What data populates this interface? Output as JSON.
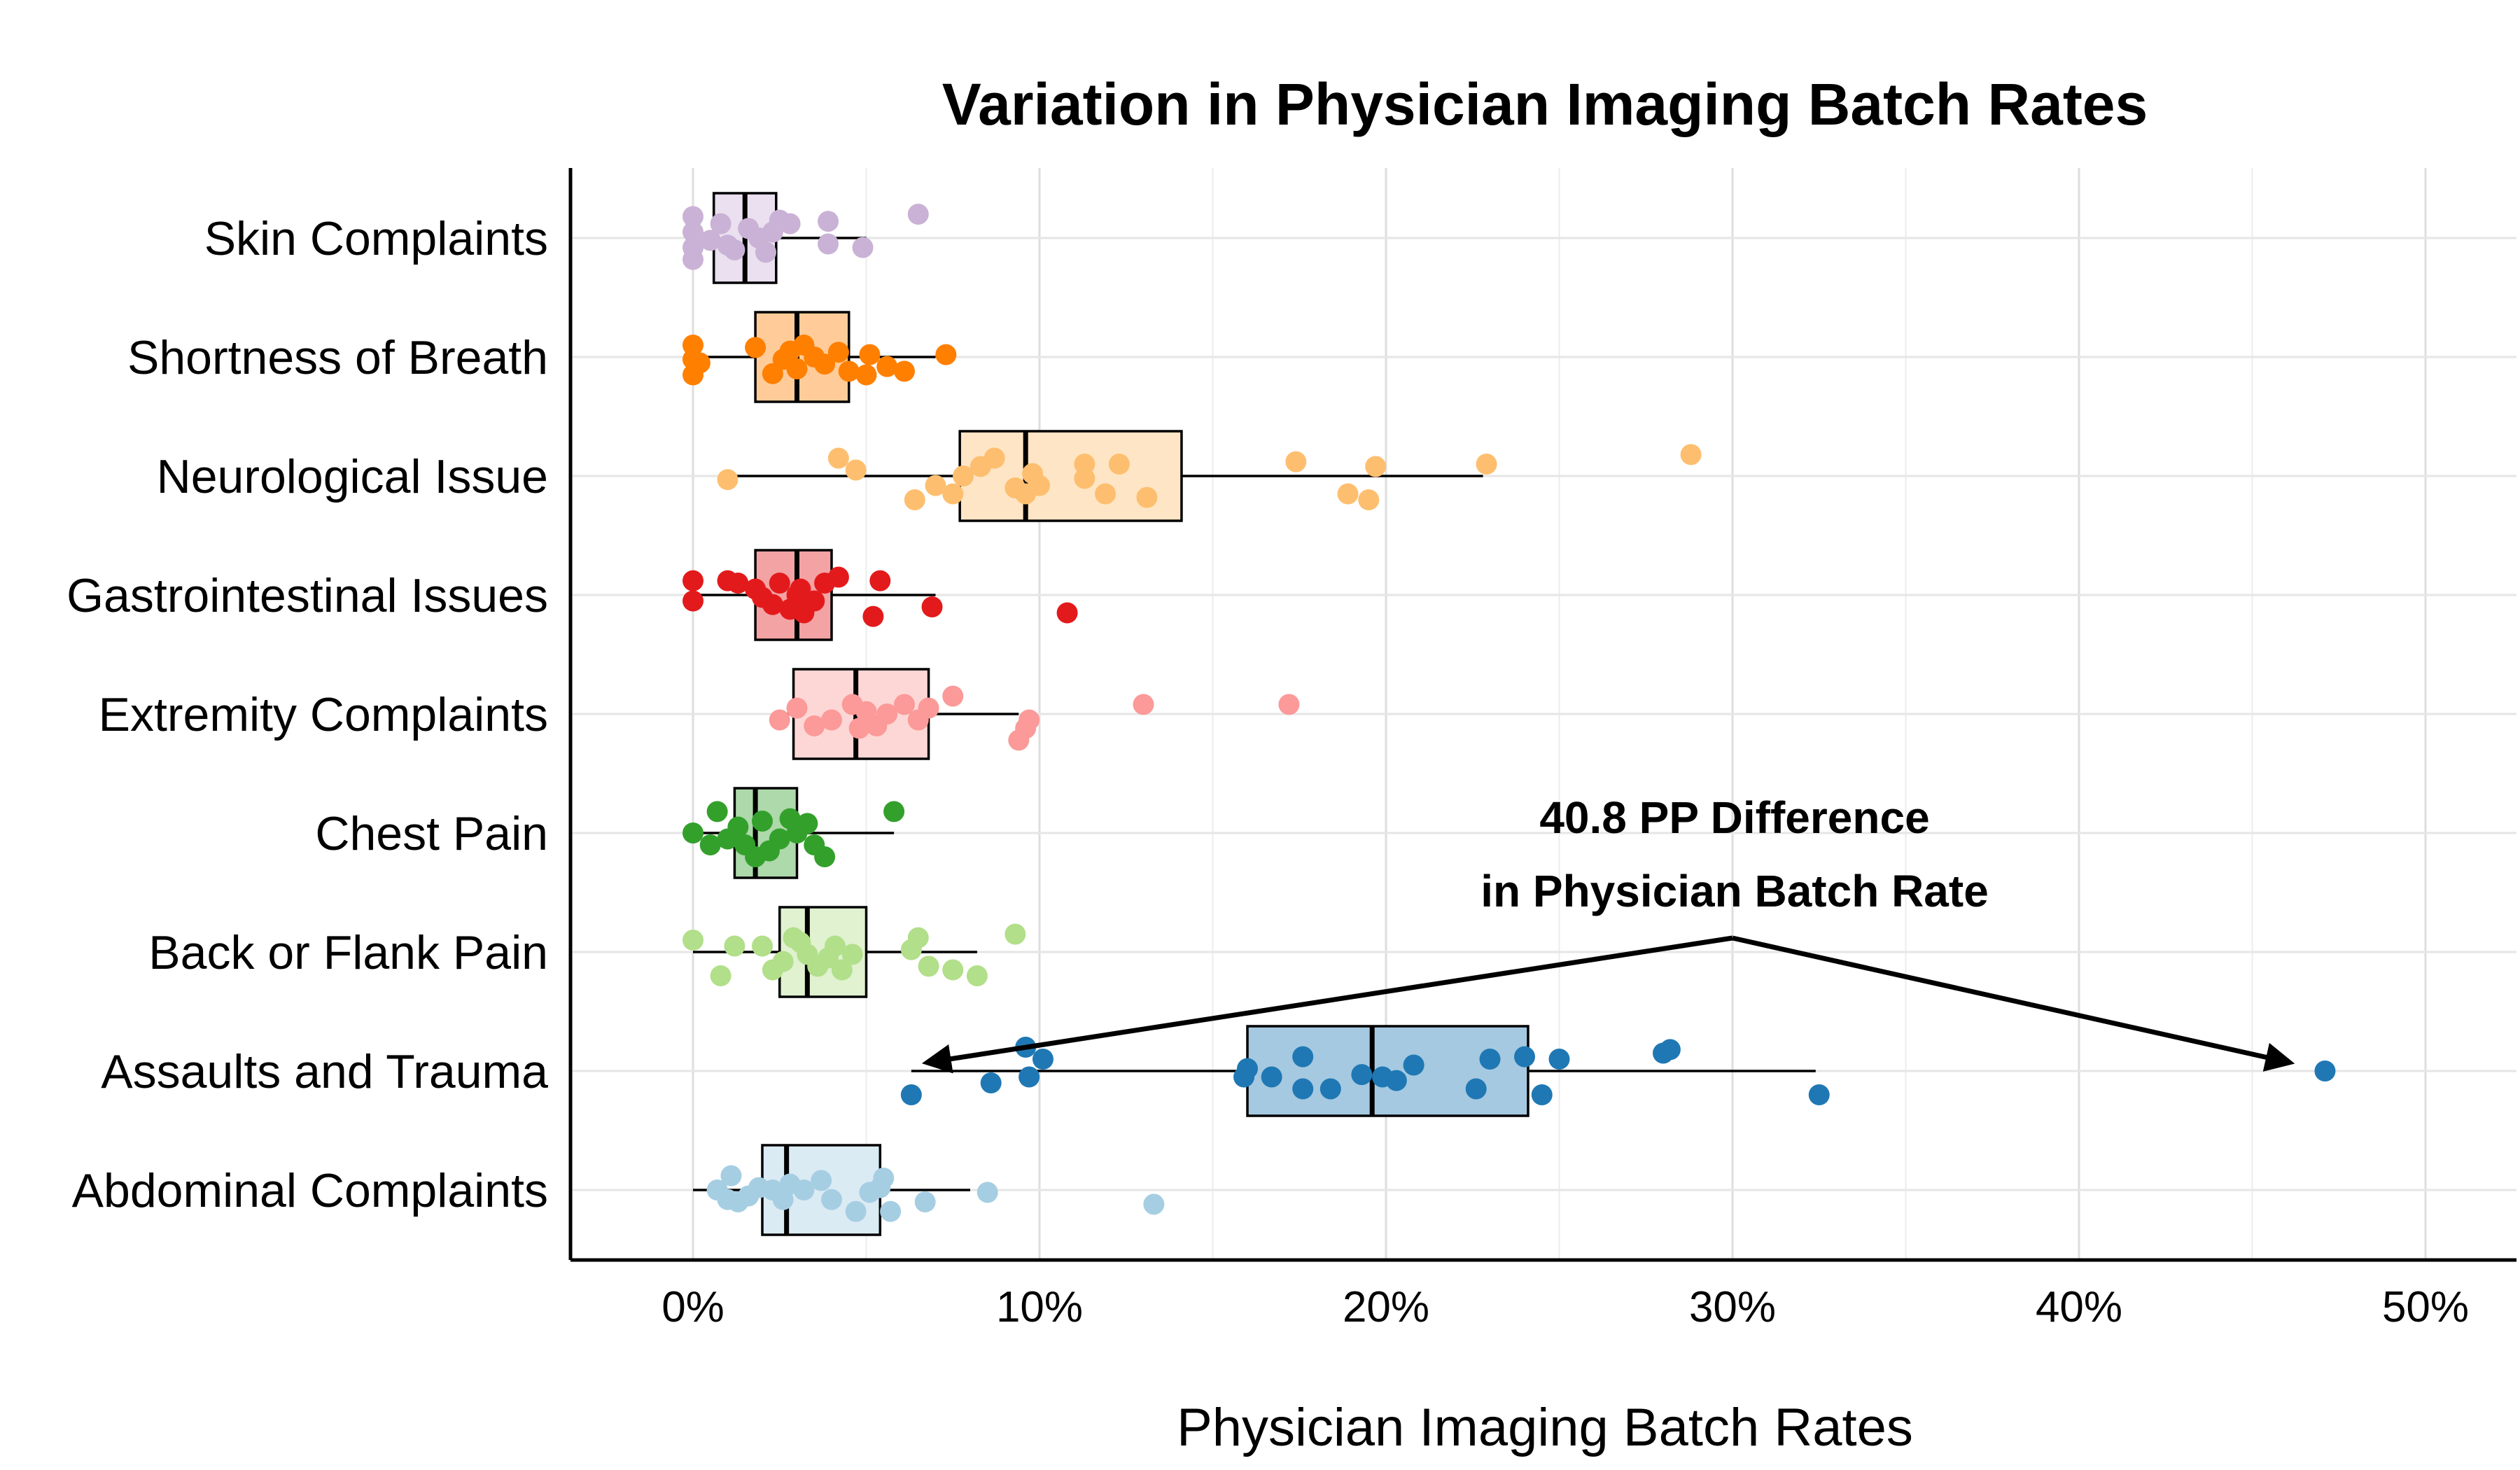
{
  "chart_data": {
    "type": "box",
    "title": "Variation in Physician Imaging Batch Rates",
    "xlabel": "Physician Imaging Batch Rates",
    "ylabel": "",
    "xlim": [
      -3.5,
      52.5
    ],
    "x_ticks": [
      0,
      10,
      20,
      30,
      40,
      50
    ],
    "x_tick_labels": [
      "0%",
      "10%",
      "20%",
      "30%",
      "40%",
      "50%"
    ],
    "grid": true,
    "annotation": {
      "lines": [
        "40.8 PP Difference",
        "in Physician Batch Rate"
      ],
      "from_x": 30,
      "arrow_targets_x": [
        6.3,
        47.1
      ],
      "arrow_target_category": "Assaults and Trauma"
    },
    "categories": [
      "Skin Complaints",
      "Shortness of Breath",
      "Neurological Issue",
      "Gastrointestinal Issues",
      "Extremity Complaints",
      "Chest Pain",
      "Back or Flank Pain",
      "Assaults and Trauma",
      "Abdominal Complaints"
    ],
    "series": [
      {
        "category": "Skin Complaints",
        "color": "#cab2d6",
        "box": {
          "whisker_low": 0,
          "q1": 0.6,
          "median": 1.5,
          "q3": 2.4,
          "whisker_high": 5.0
        },
        "points": [
          [
            0,
            0.18
          ],
          [
            0,
            -0.05
          ],
          [
            0,
            0.08
          ],
          [
            0,
            -0.18
          ],
          [
            0.5,
            0.02
          ],
          [
            0.8,
            -0.12
          ],
          [
            1.0,
            0.06
          ],
          [
            1.2,
            0.1
          ],
          [
            1.6,
            -0.08
          ],
          [
            1.9,
            0.0
          ],
          [
            2.1,
            0.12
          ],
          [
            2.3,
            -0.05
          ],
          [
            2.5,
            -0.15
          ],
          [
            2.8,
            -0.12
          ],
          [
            3.9,
            0.05
          ],
          [
            3.9,
            -0.14
          ],
          [
            4.9,
            0.08
          ],
          [
            6.5,
            -0.2
          ]
        ]
      },
      {
        "category": "Shortness of Breath",
        "color": "#ff7f00",
        "box": {
          "whisker_low": 0,
          "q1": 1.8,
          "median": 3.0,
          "q3": 4.5,
          "whisker_high": 7.0
        },
        "points": [
          [
            0,
            0.15
          ],
          [
            0,
            0.02
          ],
          [
            0,
            -0.1
          ],
          [
            0.2,
            0.05
          ],
          [
            1.8,
            -0.08
          ],
          [
            2.3,
            0.14
          ],
          [
            2.6,
            0.02
          ],
          [
            2.8,
            -0.05
          ],
          [
            3.0,
            0.1
          ],
          [
            3.2,
            -0.1
          ],
          [
            3.5,
            0.0
          ],
          [
            3.8,
            0.06
          ],
          [
            4.2,
            -0.04
          ],
          [
            4.5,
            0.12
          ],
          [
            5.0,
            0.15
          ],
          [
            5.1,
            -0.02
          ],
          [
            5.6,
            0.08
          ],
          [
            6.1,
            0.12
          ],
          [
            7.3,
            -0.02
          ]
        ]
      },
      {
        "category": "Neurological Issue",
        "color": "#fdbf6f",
        "box": {
          "whisker_low": 1.0,
          "q1": 7.7,
          "median": 9.6,
          "q3": 14.1,
          "whisker_high": 22.8
        },
        "points": [
          [
            1.0,
            0.03
          ],
          [
            4.2,
            -0.15
          ],
          [
            4.7,
            -0.05
          ],
          [
            6.4,
            0.2
          ],
          [
            7.0,
            0.08
          ],
          [
            7.5,
            0.15
          ],
          [
            7.8,
            0.0
          ],
          [
            8.3,
            -0.08
          ],
          [
            8.7,
            -0.15
          ],
          [
            9.3,
            0.1
          ],
          [
            9.6,
            0.15
          ],
          [
            9.8,
            -0.02
          ],
          [
            10.0,
            0.08
          ],
          [
            11.3,
            0.02
          ],
          [
            11.3,
            -0.1
          ],
          [
            11.9,
            0.15
          ],
          [
            12.3,
            -0.1
          ],
          [
            13.1,
            0.18
          ],
          [
            17.4,
            -0.12
          ],
          [
            18.9,
            0.15
          ],
          [
            19.5,
            0.2
          ],
          [
            19.7,
            -0.08
          ],
          [
            22.9,
            -0.1
          ],
          [
            28.8,
            -0.18
          ]
        ]
      },
      {
        "category": "Gastrointestinal Issues",
        "color": "#e31a1c",
        "box": {
          "whisker_low": 0,
          "q1": 1.8,
          "median": 3.0,
          "q3": 4.0,
          "whisker_high": 7.0
        },
        "points": [
          [
            0,
            0.05
          ],
          [
            0,
            -0.12
          ],
          [
            1.0,
            -0.12
          ],
          [
            1.3,
            -0.1
          ],
          [
            1.8,
            -0.05
          ],
          [
            2.0,
            0.02
          ],
          [
            2.3,
            0.08
          ],
          [
            2.5,
            -0.1
          ],
          [
            2.8,
            0.12
          ],
          [
            3.0,
            0.0
          ],
          [
            3.1,
            -0.05
          ],
          [
            3.2,
            0.15
          ],
          [
            3.5,
            0.05
          ],
          [
            3.8,
            -0.1
          ],
          [
            4.2,
            -0.15
          ],
          [
            5.2,
            0.18
          ],
          [
            5.4,
            -0.12
          ],
          [
            6.9,
            0.1
          ],
          [
            10.8,
            0.15
          ]
        ]
      },
      {
        "category": "Extremity Complaints",
        "color": "#fb9a99",
        "box": {
          "whisker_low": 2.5,
          "q1": 2.9,
          "median": 4.7,
          "q3": 6.8,
          "whisker_high": 9.4
        },
        "points": [
          [
            2.5,
            0.05
          ],
          [
            3.0,
            -0.05
          ],
          [
            3.5,
            0.1
          ],
          [
            4.0,
            0.05
          ],
          [
            4.6,
            -0.08
          ],
          [
            4.8,
            0.12
          ],
          [
            5.0,
            -0.02
          ],
          [
            5.3,
            0.1
          ],
          [
            5.6,
            0.0
          ],
          [
            6.1,
            -0.08
          ],
          [
            6.5,
            0.05
          ],
          [
            6.8,
            -0.05
          ],
          [
            7.5,
            -0.15
          ],
          [
            9.4,
            0.22
          ],
          [
            9.6,
            0.12
          ],
          [
            9.7,
            0.05
          ],
          [
            13.0,
            -0.08
          ],
          [
            17.2,
            -0.08
          ]
        ]
      },
      {
        "category": "Chest Pain",
        "color": "#33a02c",
        "box": {
          "whisker_low": 0,
          "q1": 1.2,
          "median": 1.8,
          "q3": 3.0,
          "whisker_high": 5.8
        },
        "points": [
          [
            0,
            0.0
          ],
          [
            0.5,
            0.1
          ],
          [
            0.7,
            -0.18
          ],
          [
            1.0,
            0.05
          ],
          [
            1.3,
            -0.05
          ],
          [
            1.5,
            0.1
          ],
          [
            1.8,
            0.2
          ],
          [
            2.0,
            -0.1
          ],
          [
            2.2,
            0.15
          ],
          [
            2.5,
            0.05
          ],
          [
            2.8,
            -0.12
          ],
          [
            3.0,
            0.0
          ],
          [
            3.3,
            -0.08
          ],
          [
            3.5,
            0.1
          ],
          [
            3.8,
            0.2
          ],
          [
            5.8,
            -0.18
          ]
        ]
      },
      {
        "category": "Back or Flank Pain",
        "color": "#b2df8a",
        "box": {
          "whisker_low": 0,
          "q1": 2.5,
          "median": 3.3,
          "q3": 5.0,
          "whisker_high": 8.2
        },
        "points": [
          [
            0,
            -0.1
          ],
          [
            0.8,
            0.2
          ],
          [
            1.2,
            -0.05
          ],
          [
            2.0,
            -0.05
          ],
          [
            2.3,
            0.15
          ],
          [
            2.6,
            0.08
          ],
          [
            2.9,
            -0.12
          ],
          [
            3.1,
            -0.08
          ],
          [
            3.3,
            0.02
          ],
          [
            3.6,
            0.12
          ],
          [
            3.9,
            0.05
          ],
          [
            4.1,
            -0.05
          ],
          [
            4.3,
            0.15
          ],
          [
            4.6,
            0.02
          ],
          [
            6.3,
            -0.02
          ],
          [
            6.5,
            -0.12
          ],
          [
            6.8,
            0.12
          ],
          [
            7.5,
            0.15
          ],
          [
            8.2,
            0.2
          ],
          [
            9.3,
            -0.15
          ]
        ]
      },
      {
        "category": "Assaults and Trauma",
        "color": "#1f78b4",
        "box": {
          "whisker_low": 6.3,
          "q1": 16.0,
          "median": 19.6,
          "q3": 24.1,
          "whisker_high": 32.4
        },
        "points": [
          [
            6.3,
            0.2
          ],
          [
            8.6,
            0.1
          ],
          [
            9.6,
            -0.2
          ],
          [
            9.7,
            0.05
          ],
          [
            10.1,
            -0.1
          ],
          [
            15.9,
            0.05
          ],
          [
            16.0,
            -0.02
          ],
          [
            16.7,
            0.05
          ],
          [
            17.6,
            0.15
          ],
          [
            17.6,
            -0.12
          ],
          [
            18.4,
            0.15
          ],
          [
            19.3,
            0.03
          ],
          [
            19.9,
            0.05
          ],
          [
            20.3,
            0.08
          ],
          [
            20.8,
            -0.05
          ],
          [
            22.6,
            0.15
          ],
          [
            23.0,
            -0.1
          ],
          [
            24.0,
            -0.12
          ],
          [
            24.5,
            0.2
          ],
          [
            25.0,
            -0.1
          ],
          [
            28.0,
            -0.15
          ],
          [
            28.2,
            -0.18
          ],
          [
            32.5,
            0.2
          ],
          [
            47.1,
            0.0
          ]
        ]
      },
      {
        "category": "Abdominal Complaints",
        "color": "#a6cee3",
        "box": {
          "whisker_low": 0,
          "q1": 2.0,
          "median": 2.7,
          "q3": 5.4,
          "whisker_high": 8.0
        },
        "points": [
          [
            0.7,
            0.0
          ],
          [
            1.0,
            0.08
          ],
          [
            1.1,
            -0.12
          ],
          [
            1.3,
            0.1
          ],
          [
            1.6,
            0.05
          ],
          [
            1.9,
            -0.02
          ],
          [
            2.3,
            0.0
          ],
          [
            2.6,
            0.08
          ],
          [
            2.8,
            -0.05
          ],
          [
            3.2,
            0.0
          ],
          [
            3.7,
            -0.08
          ],
          [
            4.0,
            0.08
          ],
          [
            4.7,
            0.18
          ],
          [
            5.1,
            0.02
          ],
          [
            5.4,
            -0.02
          ],
          [
            5.5,
            -0.1
          ],
          [
            5.7,
            0.18
          ],
          [
            6.7,
            0.1
          ],
          [
            8.5,
            0.02
          ],
          [
            13.3,
            0.12
          ]
        ]
      }
    ]
  }
}
